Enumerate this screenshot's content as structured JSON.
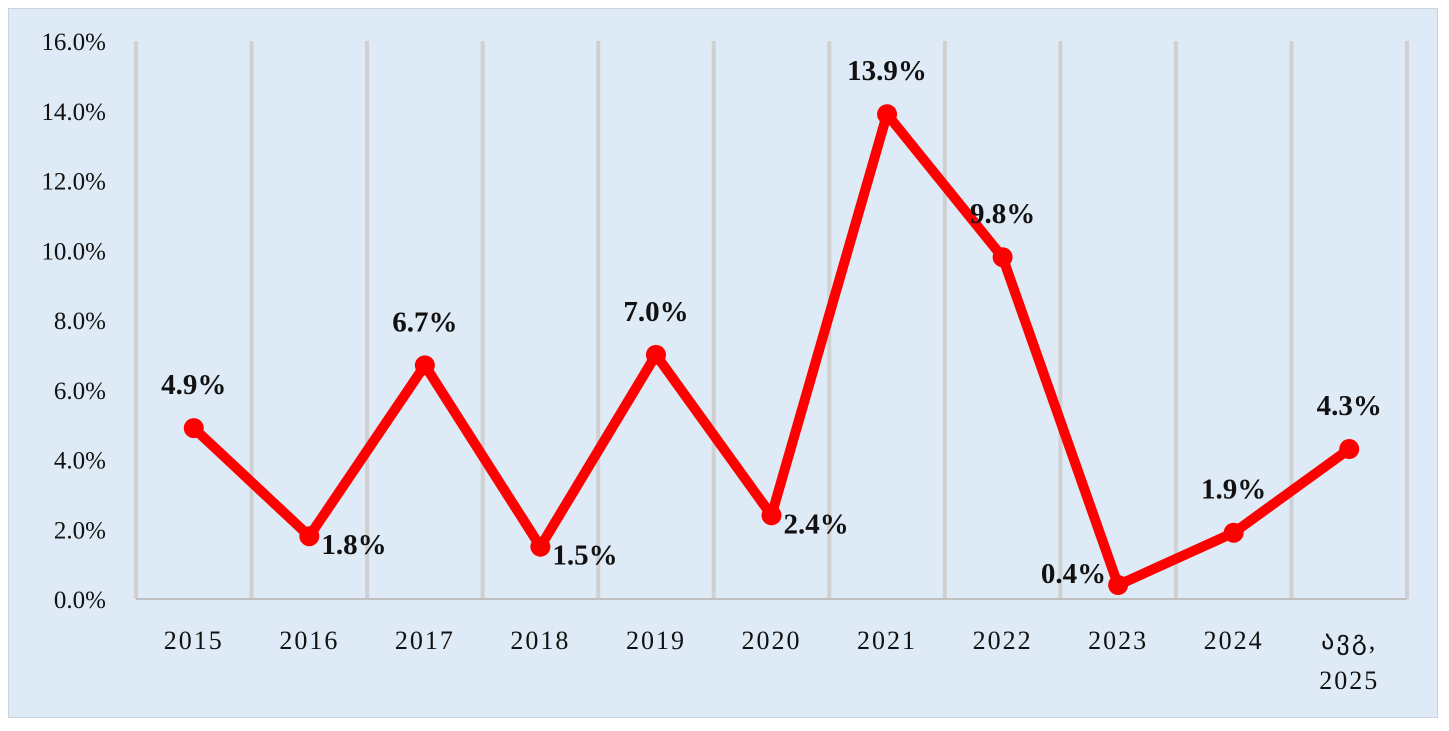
{
  "chart_data": {
    "type": "line",
    "title": "",
    "xlabel": "",
    "ylabel": "",
    "categories": [
      "2015",
      "2016",
      "2017",
      "2018",
      "2019",
      "2020",
      "2021",
      "2022",
      "2023",
      "2024",
      "ავგ, 2025"
    ],
    "category_lines": [
      [
        "2015"
      ],
      [
        "2016"
      ],
      [
        "2017"
      ],
      [
        "2018"
      ],
      [
        "2019"
      ],
      [
        "2020"
      ],
      [
        "2021"
      ],
      [
        "2022"
      ],
      [
        "2023"
      ],
      [
        "2024"
      ],
      [
        "ავგ,",
        "2025"
      ]
    ],
    "values": [
      4.9,
      1.8,
      6.7,
      1.5,
      7.0,
      2.4,
      13.9,
      9.8,
      0.4,
      1.9,
      4.3
    ],
    "value_labels": [
      "4.9%",
      "1.8%",
      "6.7%",
      "1.5%",
      "7.0%",
      "2.4%",
      "13.9%",
      "9.8%",
      "0.4%",
      "1.9%",
      "4.3%"
    ],
    "label_positions": [
      "above",
      "right",
      "above",
      "right",
      "above",
      "right",
      "above",
      "above",
      "left",
      "above",
      "above"
    ],
    "y_ticks": [
      "0.0%",
      "2.0%",
      "4.0%",
      "6.0%",
      "8.0%",
      "10.0%",
      "12.0%",
      "14.0%",
      "16.0%"
    ],
    "ylim": [
      0,
      16
    ],
    "grid": "vertical",
    "legend": "none",
    "colors": {
      "line": "#ff0000",
      "background": "#deeaf6",
      "gridline": "#d0d0d0",
      "axis": "#c0c0c0",
      "text": "#111111"
    }
  }
}
